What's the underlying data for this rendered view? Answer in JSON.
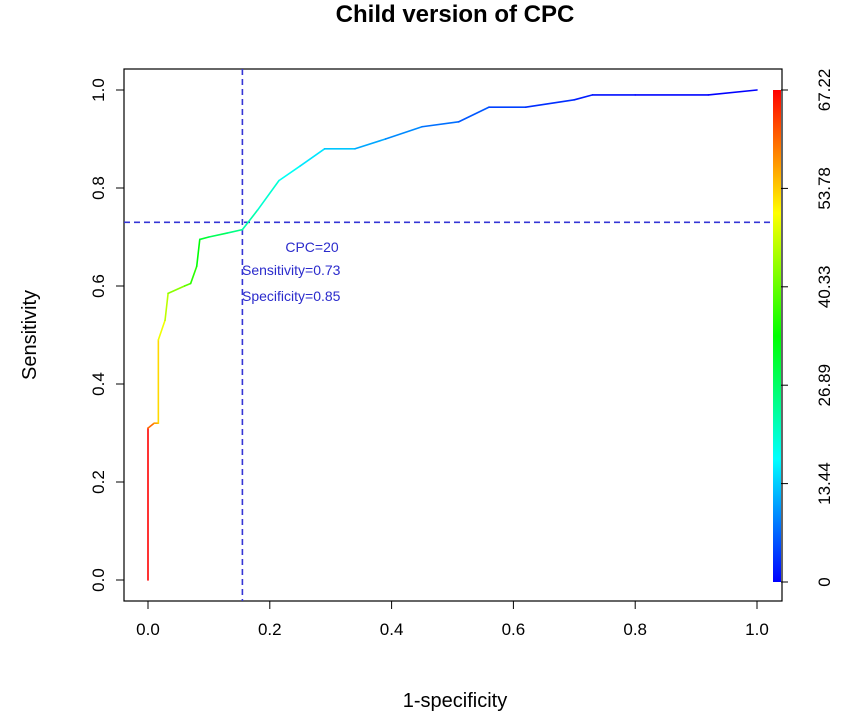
{
  "chart_data": {
    "type": "line",
    "title": "Child version of CPC",
    "xlabel": "1-specificity",
    "ylabel": "Sensitivity",
    "xlim": [
      0,
      1
    ],
    "ylim": [
      0,
      1
    ],
    "x_ticks": [
      "0.0",
      "0.2",
      "0.4",
      "0.6",
      "0.8",
      "1.0"
    ],
    "y_ticks": [
      "0.0",
      "0.2",
      "0.4",
      "0.6",
      "0.8",
      "1.0"
    ],
    "grid": false,
    "series": [
      {
        "points": [
          [
            0.0,
            0.0
          ],
          [
            0.0,
            0.31
          ],
          [
            0.01,
            0.32
          ],
          [
            0.017,
            0.32
          ],
          [
            0.017,
            0.49
          ],
          [
            0.028,
            0.53
          ],
          [
            0.033,
            0.585
          ],
          [
            0.06,
            0.6
          ],
          [
            0.07,
            0.605
          ],
          [
            0.08,
            0.64
          ],
          [
            0.085,
            0.695
          ],
          [
            0.1,
            0.7
          ],
          [
            0.13,
            0.708
          ],
          [
            0.155,
            0.715
          ],
          [
            0.18,
            0.755
          ],
          [
            0.215,
            0.815
          ],
          [
            0.25,
            0.845
          ],
          [
            0.29,
            0.88
          ],
          [
            0.34,
            0.88
          ],
          [
            0.39,
            0.9
          ],
          [
            0.45,
            0.925
          ],
          [
            0.51,
            0.935
          ],
          [
            0.56,
            0.965
          ],
          [
            0.62,
            0.965
          ],
          [
            0.7,
            0.98
          ],
          [
            0.73,
            0.99
          ],
          [
            0.8,
            0.99
          ],
          [
            0.92,
            0.99
          ],
          [
            1.0,
            1.0
          ]
        ]
      }
    ],
    "reference_lines": {
      "x": 0.155,
      "y": 0.73,
      "color": "#3535d6",
      "style": "dashed"
    },
    "annotation": {
      "lines": [
        "CPC=20",
        "Sensitivity=0.73",
        "Specificity=0.85"
      ],
      "color": "#2b2bcc"
    },
    "colorbar": {
      "labels": [
        "0",
        "13.44",
        "26.89",
        "40.33",
        "53.78",
        "67.22"
      ],
      "range": [
        0,
        67.22
      ],
      "colors": [
        "#0000ff",
        "#00ffff",
        "#00ff00",
        "#ffff00",
        "#ff0000"
      ]
    }
  }
}
